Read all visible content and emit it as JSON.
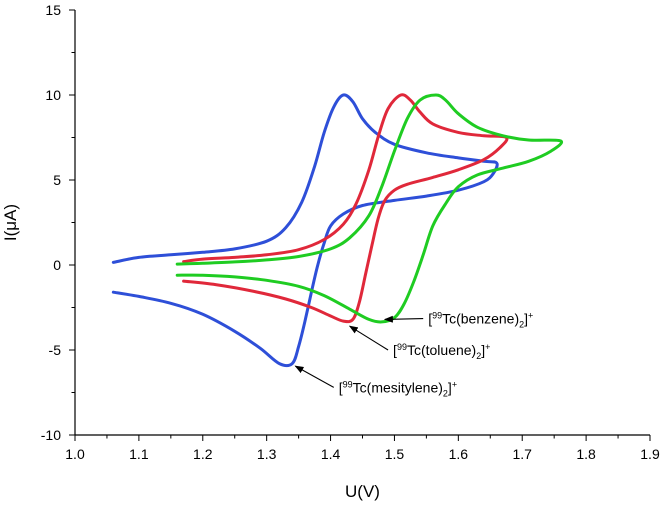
{
  "chart_data": {
    "type": "line",
    "xlabel": "U(V)",
    "ylabel": "I(μA)",
    "xlim": [
      1.0,
      1.9
    ],
    "ylim": [
      -10,
      15
    ],
    "xticks": [
      1.0,
      1.1,
      1.2,
      1.3,
      1.4,
      1.5,
      1.6,
      1.7,
      1.8,
      1.9
    ],
    "yticks": [
      -10,
      -5,
      0,
      5,
      10,
      15
    ],
    "xtick_labels": [
      "1.0",
      "1.1",
      "1.2",
      "1.3",
      "1.4",
      "1.5",
      "1.6",
      "1.7",
      "1.8",
      "1.9"
    ],
    "ytick_labels": [
      "-10",
      "-5",
      "0",
      "5",
      "10",
      "15"
    ],
    "grid": false,
    "series": [
      {
        "color": "#2e4fd8",
        "points": [
          [
            1.06,
            0.15
          ],
          [
            1.1,
            0.45
          ],
          [
            1.15,
            0.6
          ],
          [
            1.2,
            0.75
          ],
          [
            1.25,
            0.95
          ],
          [
            1.3,
            1.4
          ],
          [
            1.33,
            2.2
          ],
          [
            1.355,
            3.7
          ],
          [
            1.375,
            5.8
          ],
          [
            1.39,
            7.8
          ],
          [
            1.405,
            9.3
          ],
          [
            1.42,
            10.0
          ],
          [
            1.435,
            9.6
          ],
          [
            1.45,
            8.6
          ],
          [
            1.47,
            7.8
          ],
          [
            1.5,
            7.1
          ],
          [
            1.55,
            6.6
          ],
          [
            1.6,
            6.3
          ],
          [
            1.64,
            6.1
          ],
          [
            1.66,
            6.0
          ],
          [
            1.655,
            5.4
          ],
          [
            1.64,
            4.9
          ],
          [
            1.6,
            4.4
          ],
          [
            1.55,
            4.05
          ],
          [
            1.5,
            3.8
          ],
          [
            1.45,
            3.5
          ],
          [
            1.42,
            3.0
          ],
          [
            1.4,
            2.3
          ],
          [
            1.39,
            1.3
          ],
          [
            1.38,
            0.0
          ],
          [
            1.37,
            -1.6
          ],
          [
            1.36,
            -3.3
          ],
          [
            1.35,
            -4.8
          ],
          [
            1.34,
            -5.8
          ],
          [
            1.32,
            -5.8
          ],
          [
            1.29,
            -4.9
          ],
          [
            1.25,
            -3.9
          ],
          [
            1.2,
            -2.9
          ],
          [
            1.15,
            -2.25
          ],
          [
            1.1,
            -1.85
          ],
          [
            1.06,
            -1.6
          ]
        ]
      },
      {
        "color": "#e0283a",
        "points": [
          [
            1.17,
            0.2
          ],
          [
            1.2,
            0.35
          ],
          [
            1.25,
            0.45
          ],
          [
            1.3,
            0.6
          ],
          [
            1.35,
            0.9
          ],
          [
            1.39,
            1.5
          ],
          [
            1.42,
            2.4
          ],
          [
            1.44,
            3.6
          ],
          [
            1.46,
            5.6
          ],
          [
            1.475,
            7.6
          ],
          [
            1.49,
            9.2
          ],
          [
            1.51,
            10.0
          ],
          [
            1.525,
            9.7
          ],
          [
            1.54,
            9.0
          ],
          [
            1.56,
            8.3
          ],
          [
            1.6,
            7.8
          ],
          [
            1.64,
            7.6
          ],
          [
            1.675,
            7.5
          ],
          [
            1.665,
            6.9
          ],
          [
            1.64,
            6.2
          ],
          [
            1.6,
            5.6
          ],
          [
            1.56,
            5.15
          ],
          [
            1.52,
            4.75
          ],
          [
            1.5,
            4.4
          ],
          [
            1.485,
            3.8
          ],
          [
            1.475,
            2.8
          ],
          [
            1.465,
            1.2
          ],
          [
            1.455,
            -0.5
          ],
          [
            1.445,
            -2.2
          ],
          [
            1.435,
            -3.2
          ],
          [
            1.42,
            -3.3
          ],
          [
            1.4,
            -3.0
          ],
          [
            1.37,
            -2.5
          ],
          [
            1.33,
            -2.0
          ],
          [
            1.28,
            -1.55
          ],
          [
            1.22,
            -1.15
          ],
          [
            1.17,
            -0.95
          ]
        ]
      },
      {
        "color": "#1fcc22",
        "points": [
          [
            1.16,
            0.05
          ],
          [
            1.2,
            0.1
          ],
          [
            1.25,
            0.18
          ],
          [
            1.3,
            0.3
          ],
          [
            1.35,
            0.5
          ],
          [
            1.4,
            0.95
          ],
          [
            1.43,
            1.6
          ],
          [
            1.46,
            2.9
          ],
          [
            1.48,
            4.6
          ],
          [
            1.5,
            6.7
          ],
          [
            1.52,
            8.6
          ],
          [
            1.54,
            9.7
          ],
          [
            1.565,
            10.0
          ],
          [
            1.58,
            9.7
          ],
          [
            1.6,
            8.9
          ],
          [
            1.63,
            8.1
          ],
          [
            1.67,
            7.6
          ],
          [
            1.71,
            7.35
          ],
          [
            1.76,
            7.3
          ],
          [
            1.745,
            6.7
          ],
          [
            1.71,
            6.1
          ],
          [
            1.67,
            5.7
          ],
          [
            1.63,
            5.3
          ],
          [
            1.6,
            4.6
          ],
          [
            1.58,
            3.6
          ],
          [
            1.56,
            2.3
          ],
          [
            1.545,
            0.6
          ],
          [
            1.53,
            -1.0
          ],
          [
            1.515,
            -2.3
          ],
          [
            1.5,
            -3.1
          ],
          [
            1.48,
            -3.35
          ],
          [
            1.46,
            -3.2
          ],
          [
            1.43,
            -2.6
          ],
          [
            1.39,
            -1.8
          ],
          [
            1.35,
            -1.25
          ],
          [
            1.3,
            -0.9
          ],
          [
            1.25,
            -0.7
          ],
          [
            1.2,
            -0.6
          ],
          [
            1.16,
            -0.6
          ]
        ]
      }
    ],
    "annotations": [
      {
        "pre": "[",
        "sup1": "99",
        "mid": "Tc(benzene)",
        "sub": "2",
        "post": "]",
        "sup2": "+",
        "arrow_from": [
          1.545,
          -3.15
        ],
        "arrow_to": [
          1.485,
          -3.2
        ]
      },
      {
        "pre": "[",
        "sup1": "99",
        "mid": "Tc(toluene)",
        "sub": "2",
        "post": "]",
        "sup2": "+",
        "arrow_from": [
          1.49,
          -5.0
        ],
        "arrow_to": [
          1.43,
          -3.6
        ]
      },
      {
        "pre": "[",
        "sup1": "99",
        "mid": "Tc(mesitylene)",
        "sub": "2",
        "post": "]",
        "sup2": "+",
        "arrow_from": [
          1.405,
          -7.2
        ],
        "arrow_to": [
          1.345,
          -5.95
        ]
      }
    ]
  }
}
